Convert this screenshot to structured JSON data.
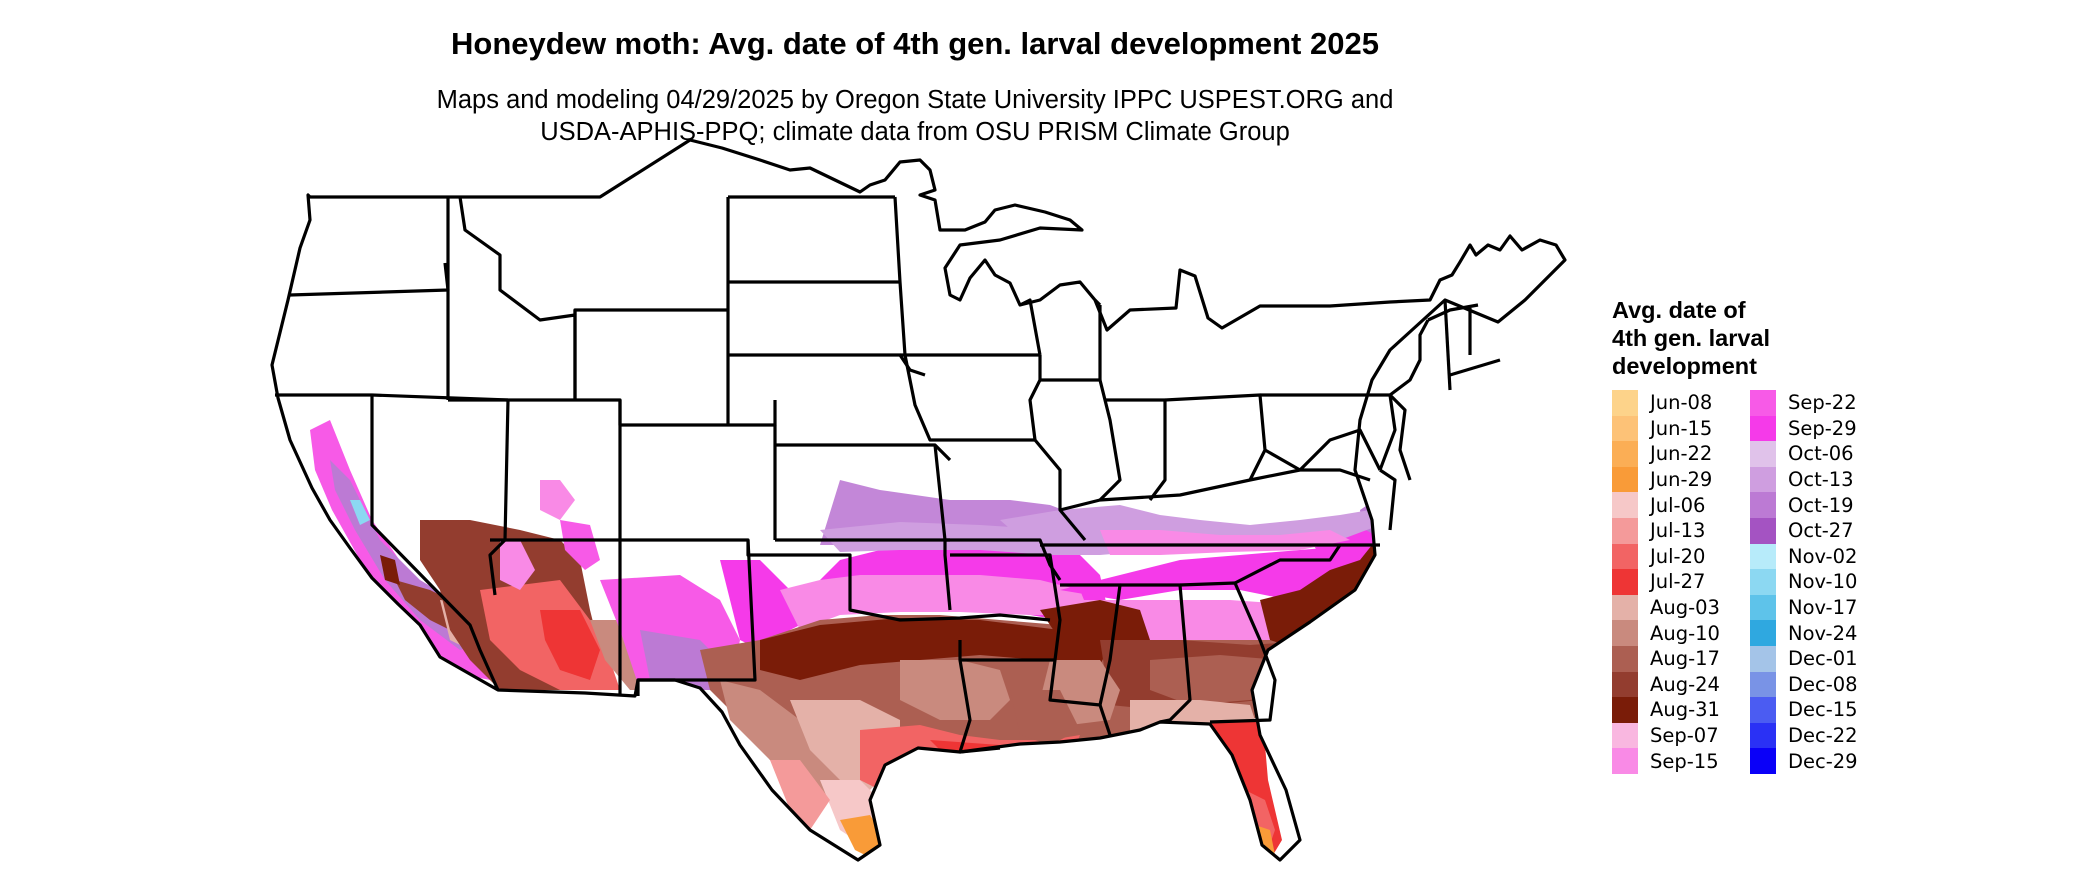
{
  "title": "Honeydew moth: Avg. date of 4th gen. larval development 2025",
  "subtitle_line1": "Maps and modeling 04/29/2025 by Oregon State University IPPC USPEST.ORG and",
  "subtitle_line2": "USDA-APHIS-PPQ; climate data from OSU PRISM Climate Group",
  "legend": {
    "title_line1": "Avg. date of",
    "title_line2": "4th gen. larval",
    "title_line3": "development",
    "column1": [
      {
        "label": "Jun-08",
        "color": "#fdd38a"
      },
      {
        "label": "Jun-15",
        "color": "#fdc277"
      },
      {
        "label": "Jun-22",
        "color": "#fbae55"
      },
      {
        "label": "Jun-29",
        "color": "#f99b38"
      },
      {
        "label": "Jul-06",
        "color": "#f6c8c8"
      },
      {
        "label": "Jul-13",
        "color": "#f49a9a"
      },
      {
        "label": "Jul-20",
        "color": "#f26464"
      },
      {
        "label": "Jul-27",
        "color": "#ee3535"
      },
      {
        "label": "Aug-03",
        "color": "#e4b1a8"
      },
      {
        "label": "Aug-10",
        "color": "#c98a7e"
      },
      {
        "label": "Aug-17",
        "color": "#ac5f52"
      },
      {
        "label": "Aug-24",
        "color": "#933d2f"
      },
      {
        "label": "Aug-31",
        "color": "#7a1c08"
      },
      {
        "label": "Sep-07",
        "color": "#f9b7e0"
      },
      {
        "label": "Sep-15",
        "color": "#f98ae6"
      }
    ],
    "column2": [
      {
        "label": "Sep-22",
        "color": "#f75ae7"
      },
      {
        "label": "Sep-29",
        "color": "#f53ae9"
      },
      {
        "label": "Oct-06",
        "color": "#e0c2ea"
      },
      {
        "label": "Oct-13",
        "color": "#cf9ee0"
      },
      {
        "label": "Oct-19",
        "color": "#bc7ad4"
      },
      {
        "label": "Oct-27",
        "color": "#a453c2"
      },
      {
        "label": "Nov-02",
        "color": "#b7ebfa"
      },
      {
        "label": "Nov-10",
        "color": "#8cd8f2"
      },
      {
        "label": "Nov-17",
        "color": "#5ec3ea"
      },
      {
        "label": "Nov-24",
        "color": "#2fa8e0"
      },
      {
        "label": "Dec-01",
        "color": "#a4c4e8"
      },
      {
        "label": "Dec-08",
        "color": "#7993e6"
      },
      {
        "label": "Dec-15",
        "color": "#4b5cf2"
      },
      {
        "label": "Dec-22",
        "color": "#2a31f5"
      },
      {
        "label": "Dec-29",
        "color": "#0a00f8"
      }
    ]
  }
}
